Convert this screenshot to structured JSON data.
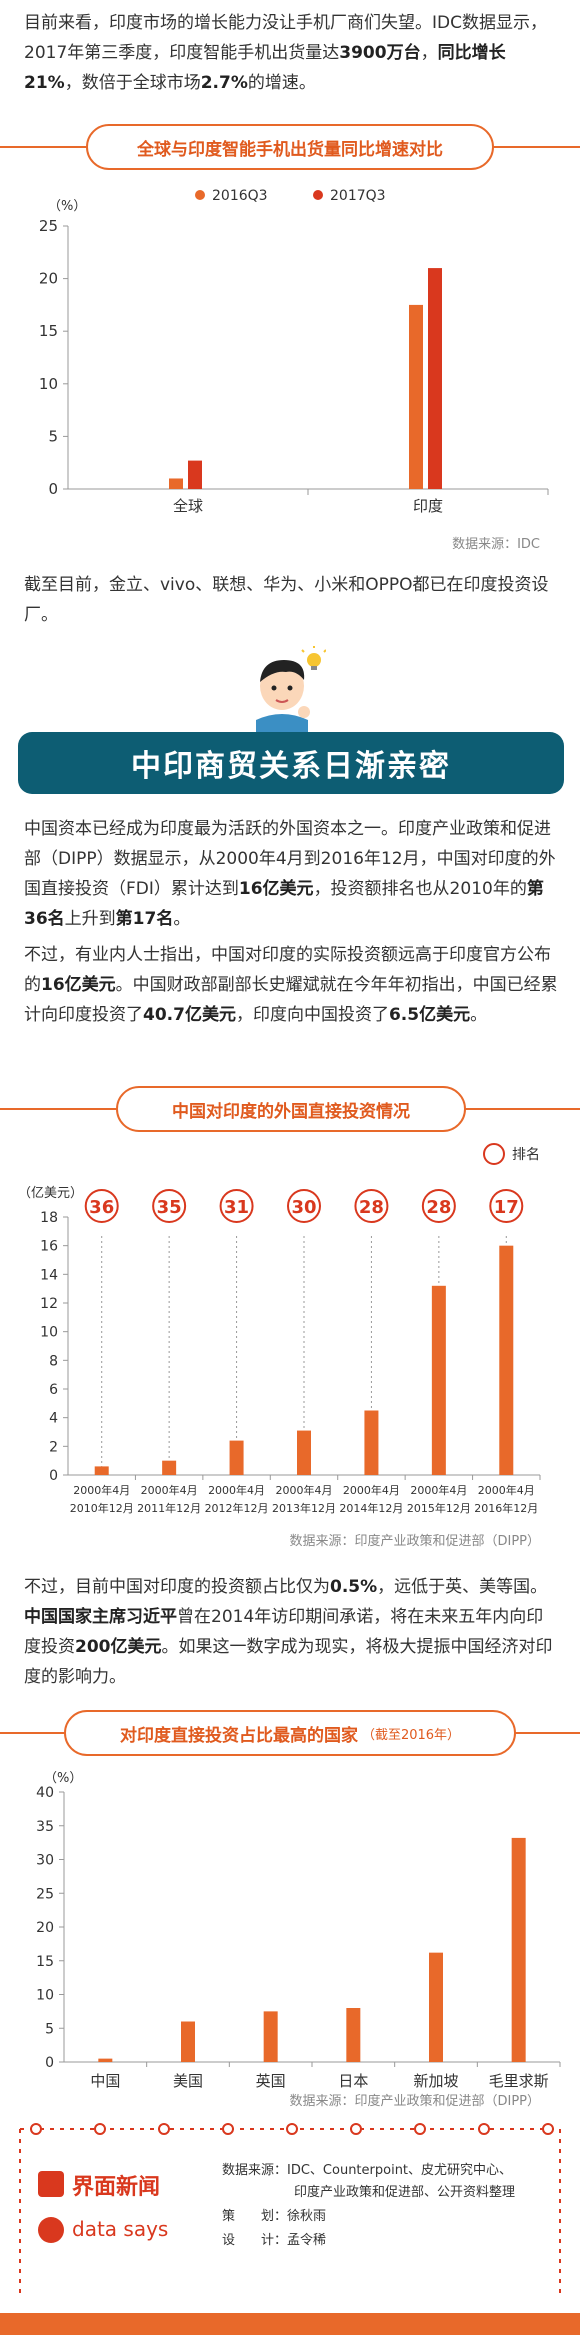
{
  "intro_text": [
    "目前来看，印度市场的增长能力没让手机厂商们失望。IDC数据显示，2017年第三季度，印度智能手机出货量达",
    "3900万台",
    "，",
    "同比增长21%",
    "，数倍于全球市场",
    "2.7%",
    "的增速。"
  ],
  "chart1": {
    "title": "全球与印度智能手机出货量同比增速对比",
    "unit_label": "（%）",
    "source": "数据来源：IDC"
  },
  "para2": "截至目前，金立、vivo、联想、华为、小米和OPPO都已在印度投资设厂。",
  "section_title": "中印商贸关系日渐亲密",
  "para3": [
    "中国资本已经成为印度最为活跃的外国资本之一。印度产业政策和促进部（DIPP）数据显示，从2000年4月到2016年12月，中国对印度的外国直接投资（FDI）累计达到",
    "16亿美元",
    "，投资额排名也从2010年的",
    "第36名",
    "上升到",
    "第17名",
    "。"
  ],
  "para4": [
    "不过，有业内人士指出，中国对印度的实际投资额远高于印度官方公布的",
    "16亿美元",
    "。中国财政部副部长史耀斌就在今年年初指出，中国已经累计向印度投资了",
    "40.7亿美元",
    "，印度向中国投资了",
    "6.5亿美元",
    "。"
  ],
  "chart2": {
    "title": "中国对印度的外国直接投资情况",
    "unit_label": "（亿美元）",
    "legend_rank": "排名",
    "source": "数据来源：印度产业政策和促进部（DIPP）"
  },
  "para5": [
    "不过，目前中国对印度的投资额占比仅为",
    "0.5%",
    "，远低于英、美等国。",
    "中国国家主席习近平",
    "曾在2014年访印期间承诺，将在未来五年内向印度投资",
    "200亿美元",
    "。如果这一数字成为现实，将极大提振中国经济对印度的影响力。"
  ],
  "chart3": {
    "title": "对印度直接投资占比最高的国家",
    "title_sub": "（截至2016年）",
    "unit_label": "（%）",
    "source": "数据来源：印度产业政策和促进部（DIPP）"
  },
  "footer": {
    "brand1": "界面新闻",
    "brand2": "data says",
    "sources": "数据来源：IDC、Counterpoint、皮尤研究中心、",
    "sources2": "印度产业政策和促进部、公开资料整理",
    "planner_label": "策　　划：",
    "planner": "徐秋雨",
    "designer_label": "设　　计：",
    "designer": "孟令稀"
  },
  "colors": {
    "orange": "#e8692a",
    "red": "#d9381e",
    "teal": "#0d5d73"
  },
  "chart_data": [
    {
      "type": "bar",
      "categories": [
        "全球",
        "印度"
      ],
      "series": [
        {
          "name": "2016Q3",
          "values": [
            1,
            17.5
          ]
        },
        {
          "name": "2017Q3",
          "values": [
            2.7,
            21
          ]
        }
      ],
      "ylabel": "（%）",
      "ylim": [
        0,
        25
      ],
      "yticks": [
        0,
        5,
        10,
        15,
        20,
        25
      ]
    },
    {
      "type": "bar",
      "categories": [
        [
          "2000年4月",
          "2010年12月"
        ],
        [
          "2000年4月",
          "2011年12月"
        ],
        [
          "2000年4月",
          "2012年12月"
        ],
        [
          "2000年4月",
          "2013年12月"
        ],
        [
          "2000年4月",
          "2014年12月"
        ],
        [
          "2000年4月",
          "2015年12月"
        ],
        [
          "2000年4月",
          "2016年12月"
        ]
      ],
      "values": [
        0.6,
        1,
        2.4,
        3.1,
        4.5,
        13.2,
        16
      ],
      "ranks": [
        36,
        35,
        31,
        30,
        28,
        28,
        17
      ],
      "ylabel": "（亿美元）",
      "ylim": [
        0,
        18
      ],
      "yticks": [
        0,
        2,
        4,
        6,
        8,
        10,
        12,
        14,
        16,
        18
      ]
    },
    {
      "type": "bar",
      "categories": [
        "中国",
        "美国",
        "英国",
        "日本",
        "新加坡",
        "毛里求斯"
      ],
      "values": [
        0.5,
        6,
        7.5,
        8,
        16.2,
        33.2
      ],
      "ylabel": "（%）",
      "ylim": [
        0,
        40
      ],
      "yticks": [
        0,
        5,
        10,
        15,
        20,
        25,
        30,
        35,
        40
      ]
    }
  ]
}
